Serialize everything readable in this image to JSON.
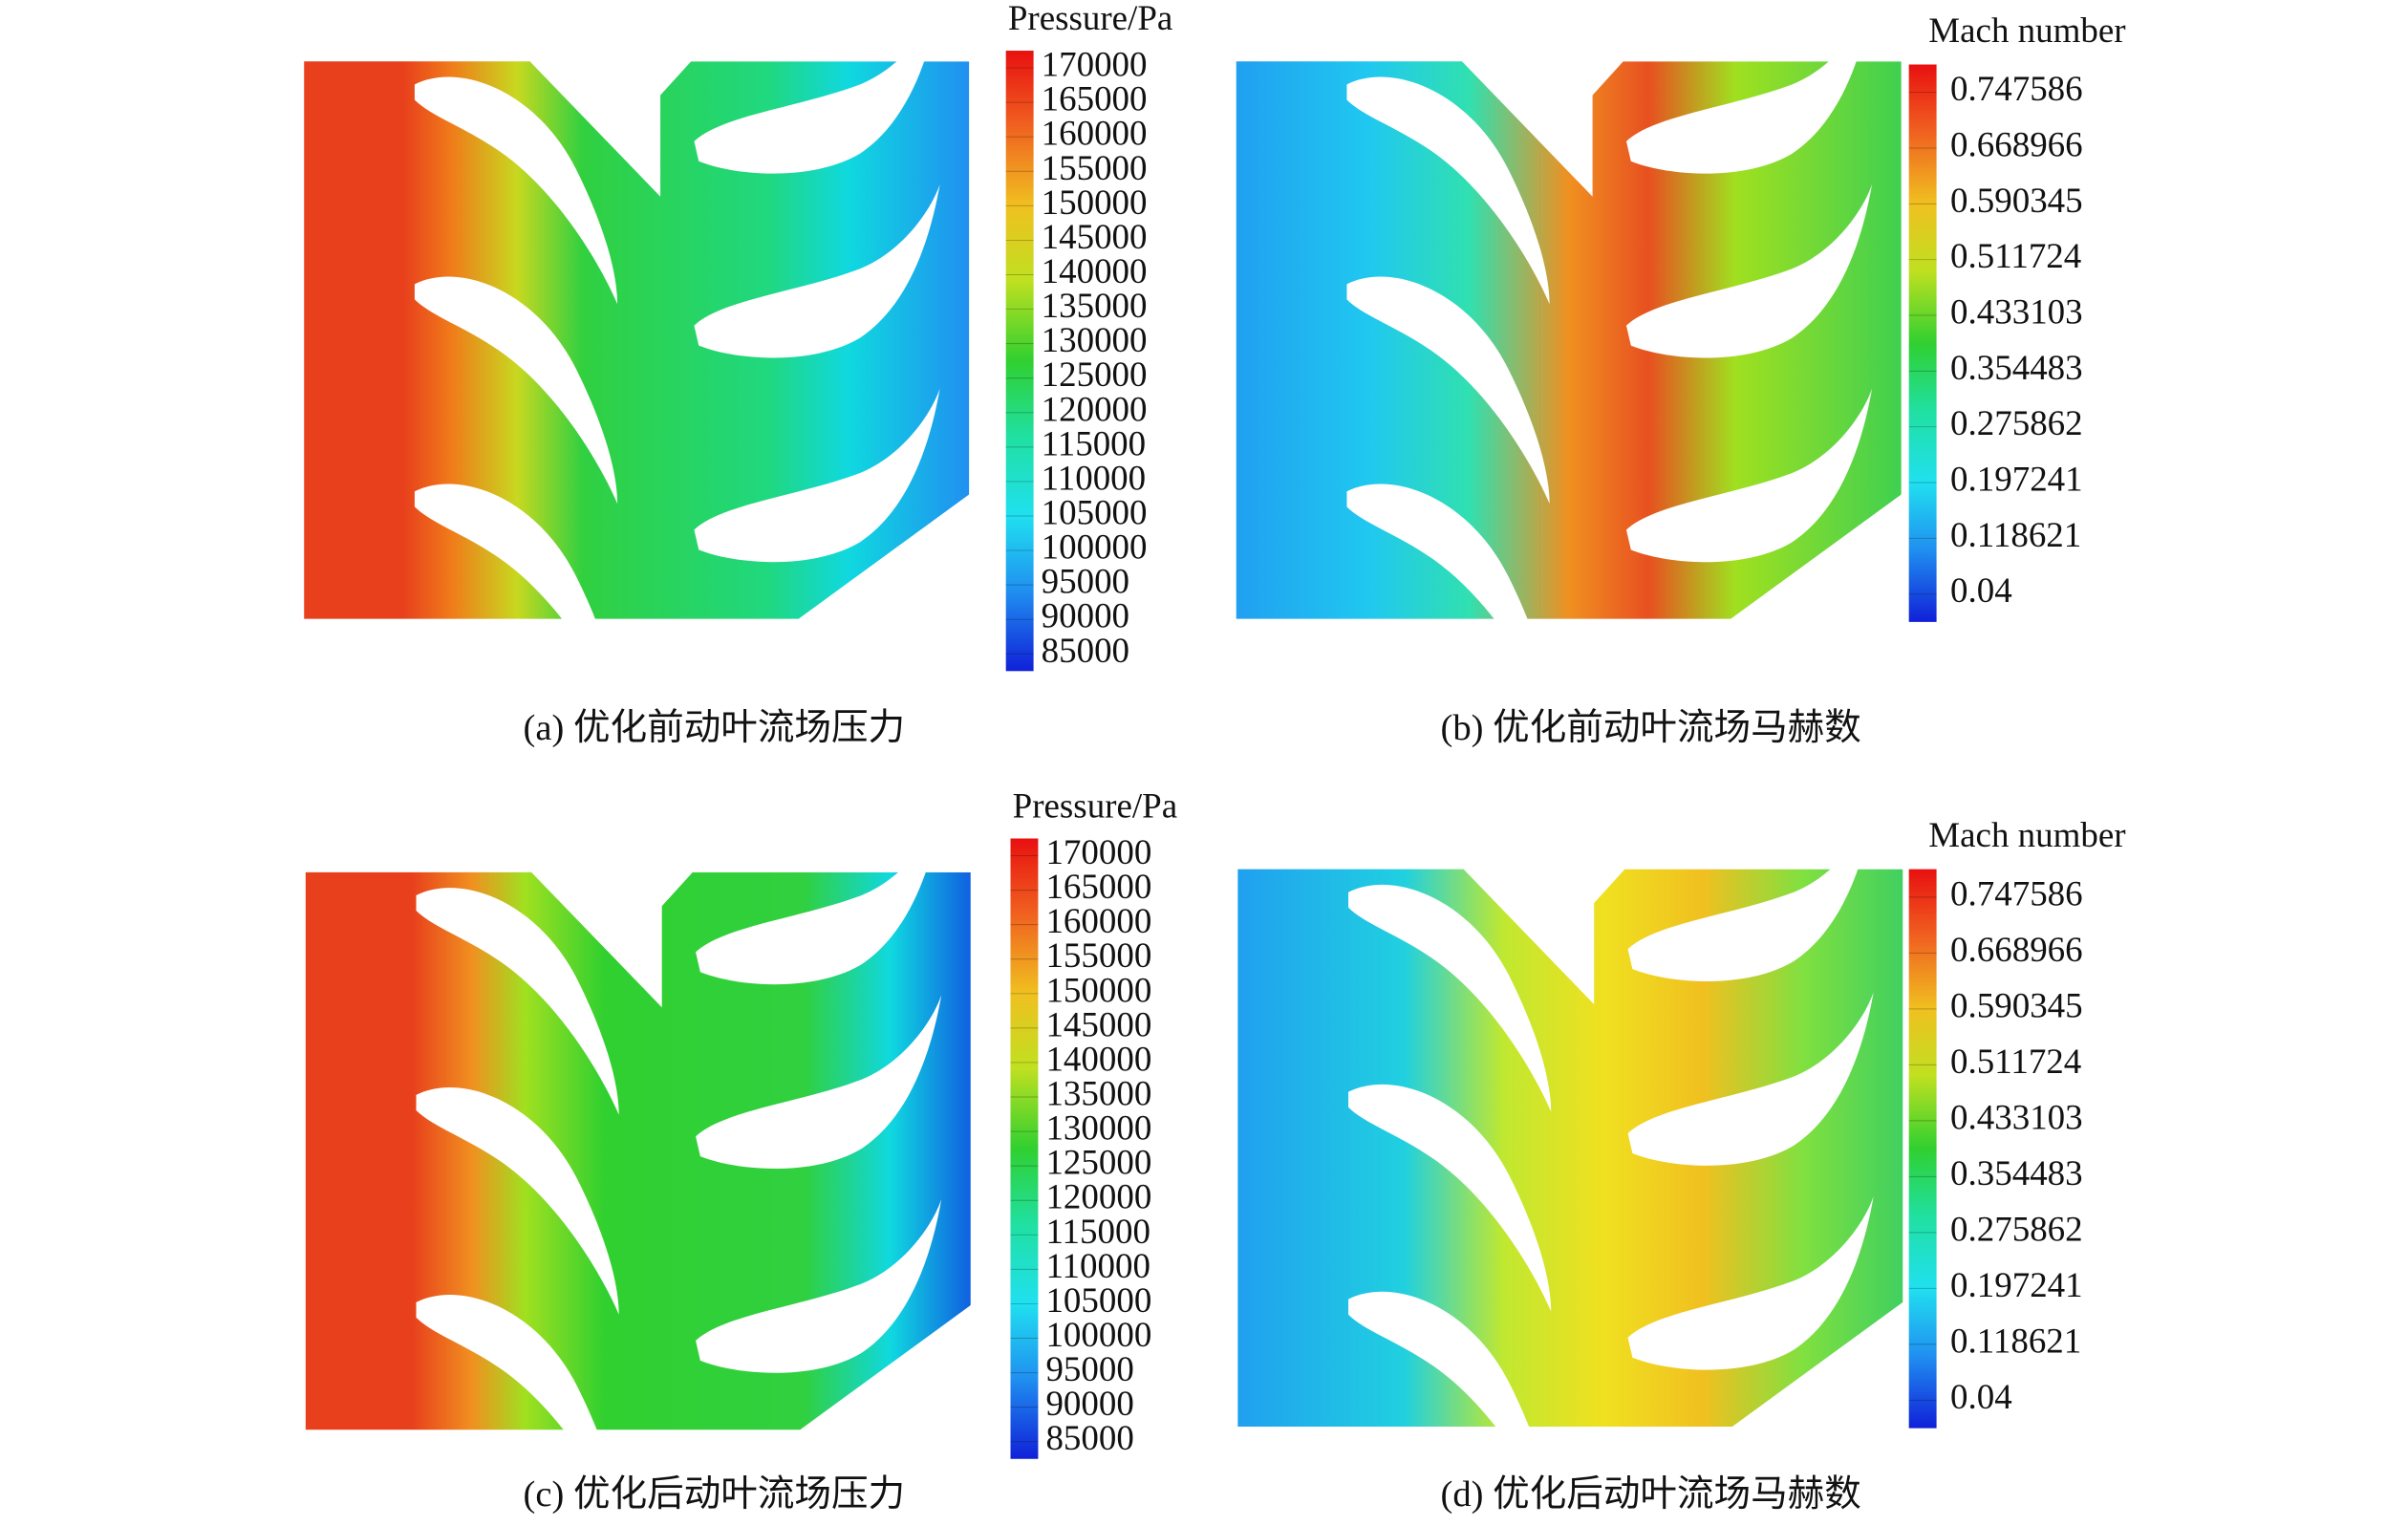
{
  "panels": [
    {
      "legend": {
        "title": "Pressure/Pa",
        "labels": [
          "170000",
          "165000",
          "160000",
          "155000",
          "150000",
          "145000",
          "140000",
          "135000",
          "130000",
          "125000",
          "120000",
          "115000",
          "110000",
          "105000",
          "100000",
          "95000",
          "90000",
          "85000"
        ]
      },
      "caption": "(a) 优化前动叶流场压力"
    },
    {
      "legend": {
        "title": "Mach number",
        "labels": [
          "0.747586",
          "0.668966",
          "0.590345",
          "0.511724",
          "0.433103",
          "0.354483",
          "0.275862",
          "0.197241",
          "0.118621",
          "0.04"
        ]
      },
      "caption": "(b) 优化前动叶流场马赫数"
    },
    {
      "legend": {
        "title": "Pressure/Pa",
        "labels": [
          "170000",
          "165000",
          "160000",
          "155000",
          "150000",
          "145000",
          "140000",
          "135000",
          "130000",
          "125000",
          "120000",
          "115000",
          "110000",
          "105000",
          "100000",
          "95000",
          "90000",
          "85000"
        ]
      },
      "caption": "(c) 优化后动叶流场压力"
    },
    {
      "legend": {
        "title": "Mach number",
        "labels": [
          "0.747586",
          "0.668966",
          "0.590345",
          "0.511724",
          "0.433103",
          "0.354483",
          "0.275862",
          "0.197241",
          "0.118621",
          "0.04"
        ]
      },
      "caption": "(d) 优化后动叶流场马赫数"
    }
  ]
}
